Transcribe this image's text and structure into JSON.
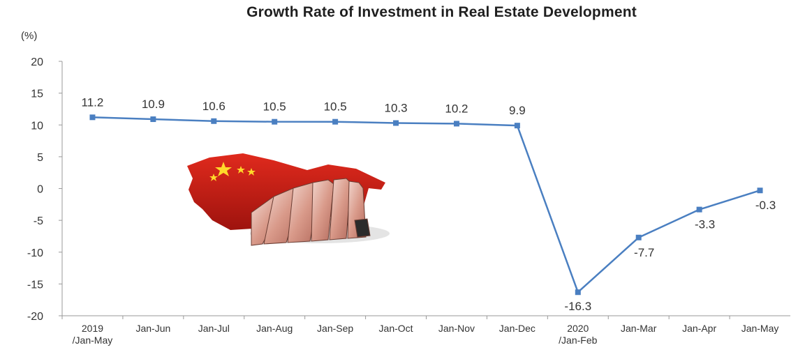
{
  "chart_data": {
    "type": "line",
    "title": "Growth Rate of Investment in Real Estate Development",
    "ylabel": "(%)",
    "xlabel": "",
    "ylim": [
      -20,
      20
    ],
    "yticks": [
      20,
      15,
      10,
      5,
      0,
      -5,
      -10,
      -15,
      -20
    ],
    "categories": [
      [
        "2019",
        "/Jan-May"
      ],
      [
        "Jan-Jun"
      ],
      [
        "Jan-Jul"
      ],
      [
        "Jan-Aug"
      ],
      [
        "Jan-Sep"
      ],
      [
        "Jan-Oct"
      ],
      [
        "Jan-Nov"
      ],
      [
        "Jan-Dec"
      ],
      [
        "2020",
        "/Jan-Feb"
      ],
      [
        "Jan-Mar"
      ],
      [
        "Jan-Apr"
      ],
      [
        "Jan-May"
      ]
    ],
    "series": [
      {
        "values": [
          11.2,
          10.9,
          10.6,
          10.5,
          10.5,
          10.3,
          10.2,
          9.9,
          -16.3,
          -7.7,
          -3.3,
          -0.3
        ]
      }
    ],
    "data_labels": [
      "11.2",
      "10.9",
      "10.6",
      "10.5",
      "10.5",
      "10.3",
      "10.2",
      "9.9",
      "-16.3",
      "-7.7",
      "-3.3",
      "-0.3"
    ],
    "line_color": "#4a7fc1",
    "grid": false,
    "legend": "none"
  }
}
